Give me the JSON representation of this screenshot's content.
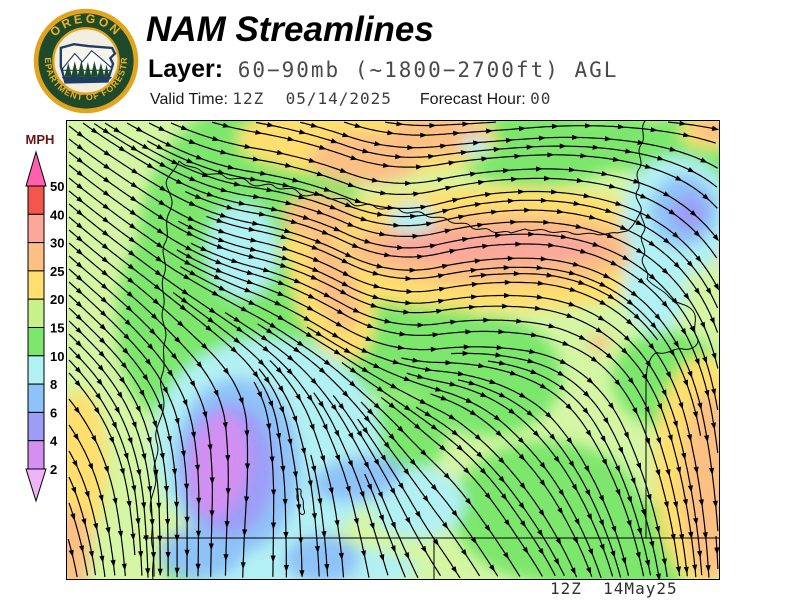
{
  "header": {
    "title": "NAM Streamlines",
    "layer_label": "Layer:",
    "layer_value": "60−90mb (~1800−2700ft) AGL",
    "valid_time_label": "Valid Time: ",
    "valid_time_value": "12Z  05/14/2025",
    "forecast_hour_label": "Forecast Hour: ",
    "forecast_hour_value": "00"
  },
  "logo": {
    "top_text": "OREGON",
    "bottom_text": "DEPARTMENT OF FORESTRY",
    "gold": "#e2a41c",
    "dark_green": "#1e4a2b",
    "navy": "#1d3c66",
    "cream": "#f2efe2"
  },
  "legend": {
    "units_label": "MPH",
    "tick_values": [
      "50",
      "40",
      "30",
      "25",
      "20",
      "15",
      "10",
      "8",
      "6",
      "4",
      "2"
    ],
    "band_colors_high_to_low": [
      "#ff5fae",
      "#f4564e",
      "#fba89b",
      "#fcc084",
      "#ffdf70",
      "#c9f189",
      "#7ce76c",
      "#b2f1f3",
      "#8fc3f8",
      "#9d9df7",
      "#d38ff2",
      "#efb3f7"
    ]
  },
  "map": {
    "timestamp": "12Z  14May25",
    "base_color": "#d5f6a4",
    "line_color": "#000000"
  }
}
